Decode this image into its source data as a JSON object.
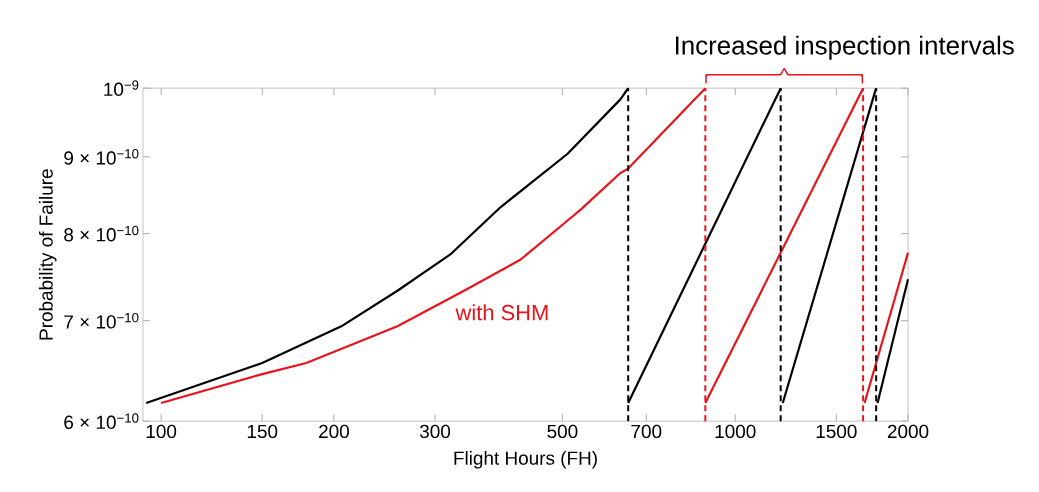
{
  "chart_data": {
    "type": "line",
    "xlabel": "Flight Hours (FH)",
    "ylabel": "Probability of Failure",
    "annotations": [
      "Increased inspection intervals"
    ],
    "log": "xy",
    "xlim": [
      93,
      2000
    ],
    "ylim": [
      6e-10,
      1e-09
    ],
    "xticks": [
      100,
      150,
      200,
      300,
      500,
      700,
      1000,
      1500,
      2000
    ],
    "yticks": [
      {
        "value": 6e-10,
        "label": "6 × 10$^{−10}$"
      },
      {
        "value": 7e-10,
        "label": "7 × 10$^{−10}$"
      },
      {
        "value": 8e-10,
        "label": "8 × 10$^{−10}$"
      },
      {
        "value": 9e-10,
        "label": "9 × 10$^{−10}$"
      },
      {
        "value": 1e-09,
        "label": "10$^{−9}$"
      }
    ],
    "series": [
      {
        "color": "#000000",
        "x": [
          94.2,
          150,
          206,
          258,
          319,
          390,
          510,
          631,
          651
        ],
        "values": [
          6.17e-10,
          6.56e-10,
          6.94e-10,
          7.33e-10,
          7.75e-10,
          8.33e-10,
          9.04e-10,
          9.83e-10,
          1e-09
        ]
      },
      {
        "color": "#000000",
        "x": [
          651,
          1200
        ],
        "values": [
          6.17e-10,
          1e-09
        ]
      },
      {
        "color": "#000000",
        "x": [
          1210,
          1760
        ],
        "values": [
          6.17e-10,
          1e-09
        ]
      },
      {
        "color": "#000000",
        "x": [
          1770,
          2000
        ],
        "values": [
          6.17e-10,
          7.46e-10
        ]
      },
      {
        "name": "with SHM",
        "color": "#e8141b",
        "x": [
          100,
          150,
          179,
          258,
          337,
          423,
          510,
          538,
          631,
          651,
          887
        ],
        "values": [
          6.17e-10,
          6.45e-10,
          6.56e-10,
          6.94e-10,
          7.33e-10,
          7.69e-10,
          8.16e-10,
          8.3e-10,
          8.78e-10,
          8.84e-10,
          1e-09
        ]
      },
      {
        "color": "#e8141b",
        "x": [
          887,
          1670
        ],
        "values": [
          6.17e-10,
          1e-09
        ]
      },
      {
        "color": "#e8141b",
        "x": [
          1680,
          2000
        ],
        "values": [
          6.17e-10,
          7.77e-10
        ]
      }
    ],
    "ref_lines": [
      {
        "axis": "x",
        "value": 651,
        "color": "#000000",
        "line_style": "dashed"
      },
      {
        "axis": "x",
        "value": 1200,
        "color": "#000000",
        "line_style": "dashed"
      },
      {
        "axis": "x",
        "value": 1760,
        "color": "#000000",
        "line_style": "dashed"
      },
      {
        "axis": "x",
        "value": 887,
        "color": "#e8141b",
        "line_style": "dashed"
      },
      {
        "axis": "x",
        "value": 1670,
        "color": "#e8141b",
        "line_style": "dashed"
      }
    ]
  }
}
